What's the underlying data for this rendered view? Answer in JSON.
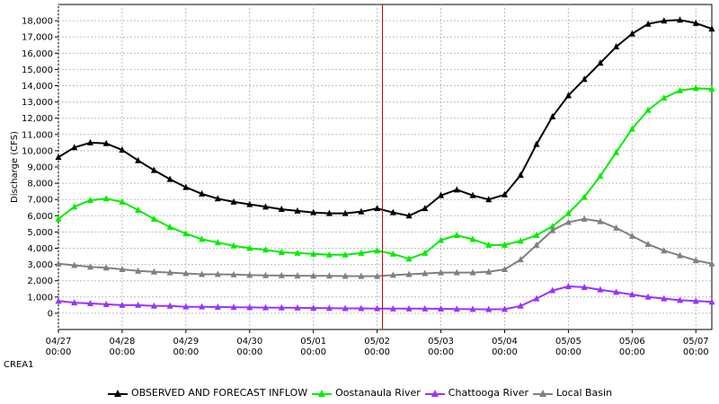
{
  "station_label": "CREA1",
  "chart_data": {
    "type": "line",
    "title": "",
    "xlabel": "",
    "ylabel": "Discharge (CFS)",
    "ylim": [
      -1000,
      19000
    ],
    "yticks": [
      0,
      1000,
      2000,
      3000,
      4000,
      5000,
      6000,
      7000,
      8000,
      9000,
      10000,
      11000,
      12000,
      13000,
      14000,
      15000,
      16000,
      17000,
      18000
    ],
    "ytick_labels": [
      "0",
      "1,000",
      "2,000",
      "3,000",
      "4,000",
      "5,000",
      "6,000",
      "7,000",
      "8,000",
      "9,000",
      "10,000",
      "11,000",
      "12,000",
      "13,000",
      "14,000",
      "15,000",
      "16,000",
      "17,000",
      "18,000"
    ],
    "xlim": [
      "2023-04-27 00:00",
      "2023-05-07 06:00"
    ],
    "xticks": [
      {
        "date": "04/27",
        "time": "00:00"
      },
      {
        "date": "04/28",
        "time": "00:00"
      },
      {
        "date": "04/29",
        "time": "00:00"
      },
      {
        "date": "04/30",
        "time": "00:00"
      },
      {
        "date": "05/01",
        "time": "00:00"
      },
      {
        "date": "05/02",
        "time": "00:00"
      },
      {
        "date": "05/03",
        "time": "00:00"
      },
      {
        "date": "05/04",
        "time": "00:00"
      },
      {
        "date": "05/05",
        "time": "00:00"
      },
      {
        "date": "05/06",
        "time": "00:00"
      },
      {
        "date": "05/07",
        "time": "00:00"
      }
    ],
    "x": [
      "04/27 00:00",
      "04/27 06:00",
      "04/27 12:00",
      "04/27 18:00",
      "04/28 00:00",
      "04/28 06:00",
      "04/28 12:00",
      "04/28 18:00",
      "04/29 00:00",
      "04/29 06:00",
      "04/29 12:00",
      "04/29 18:00",
      "04/30 00:00",
      "04/30 06:00",
      "04/30 12:00",
      "04/30 18:00",
      "05/01 00:00",
      "05/01 06:00",
      "05/01 12:00",
      "05/01 18:00",
      "05/02 00:00",
      "05/02 06:00",
      "05/02 12:00",
      "05/02 18:00",
      "05/03 00:00",
      "05/03 06:00",
      "05/03 12:00",
      "05/03 18:00",
      "05/04 00:00",
      "05/04 06:00",
      "05/04 12:00",
      "05/04 18:00",
      "05/05 00:00",
      "05/05 06:00",
      "05/05 12:00",
      "05/05 18:00",
      "05/06 00:00",
      "05/06 06:00",
      "05/06 12:00",
      "05/06 18:00",
      "05/07 00:00",
      "05/07 06:00"
    ],
    "current_time": "05/02 02:00",
    "grid": true,
    "legend_position": "bottom",
    "series": [
      {
        "name": "OBSERVED AND FORECAST INFLOW",
        "color": "#000000",
        "values": [
          9600,
          10200,
          10500,
          10450,
          10050,
          9400,
          8800,
          8250,
          7750,
          7350,
          7050,
          6850,
          6700,
          6550,
          6400,
          6300,
          6200,
          6150,
          6150,
          6250,
          6450,
          6200,
          6000,
          6450,
          7250,
          7600,
          7250,
          7000,
          7300,
          8500,
          10400,
          12100,
          13400,
          14400,
          15400,
          16400,
          17200,
          17800,
          18000,
          18050,
          17850,
          17500
        ]
      },
      {
        "name": "Oostanaula River",
        "color": "#00ee00",
        "values": [
          5800,
          6550,
          6950,
          7050,
          6850,
          6350,
          5800,
          5300,
          4900,
          4550,
          4350,
          4150,
          4000,
          3900,
          3750,
          3700,
          3650,
          3600,
          3600,
          3700,
          3850,
          3650,
          3350,
          3700,
          4500,
          4800,
          4550,
          4200,
          4200,
          4450,
          4800,
          5350,
          6150,
          7150,
          8450,
          9900,
          11350,
          12500,
          13250,
          13700,
          13850,
          13800
        ]
      },
      {
        "name": "Chattooga River",
        "color": "#9933ff",
        "values": [
          750,
          650,
          600,
          550,
          500,
          500,
          450,
          450,
          400,
          400,
          380,
          370,
          360,
          350,
          340,
          330,
          320,
          310,
          300,
          300,
          290,
          280,
          280,
          280,
          270,
          260,
          250,
          240,
          250,
          450,
          900,
          1400,
          1650,
          1600,
          1450,
          1300,
          1150,
          1000,
          900,
          800,
          750,
          700
        ]
      },
      {
        "name": "Local Basin",
        "color": "#808080",
        "values": [
          3050,
          2950,
          2850,
          2800,
          2700,
          2600,
          2550,
          2500,
          2450,
          2400,
          2400,
          2380,
          2350,
          2330,
          2320,
          2310,
          2300,
          2300,
          2290,
          2280,
          2280,
          2350,
          2400,
          2450,
          2500,
          2500,
          2500,
          2550,
          2700,
          3300,
          4200,
          5100,
          5600,
          5800,
          5650,
          5250,
          4750,
          4250,
          3850,
          3550,
          3250,
          3050
        ]
      }
    ]
  }
}
